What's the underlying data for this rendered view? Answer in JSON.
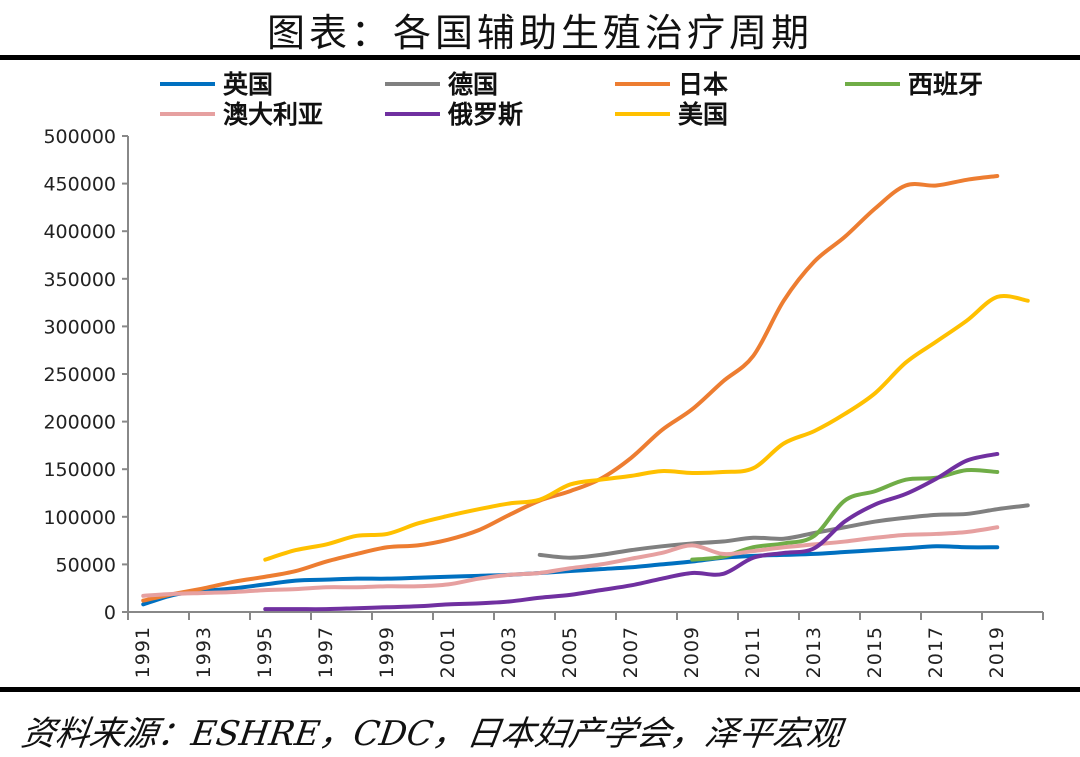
{
  "title": "图表：各国辅助生殖治疗周期",
  "source": "资料来源：ESHRE，CDC，日本妇产学会，泽平宏观",
  "chart_data": {
    "type": "line",
    "title": "图表：各国辅助生殖治疗周期",
    "xlabel": "",
    "ylabel": "",
    "ylim": [
      0,
      500000
    ],
    "yticks": [
      "0",
      "50000",
      "100000",
      "150000",
      "200000",
      "250000",
      "300000",
      "350000",
      "400000",
      "450000",
      "500000"
    ],
    "xticks": [
      "1991",
      "1993",
      "1995",
      "1997",
      "1999",
      "2001",
      "2003",
      "2005",
      "2007",
      "2009",
      "2011",
      "2013",
      "2015",
      "2017",
      "2019"
    ],
    "x_range": [
      1991,
      2020
    ],
    "grid": false,
    "legend": "top",
    "series": [
      {
        "name": "英国",
        "color": "#0070C0",
        "start": 1991,
        "values": [
          8000,
          18000,
          22000,
          25000,
          29000,
          33000,
          34000,
          35000,
          35000,
          36000,
          37000,
          38000,
          39000,
          41000,
          43000,
          45000,
          47000,
          50000,
          53000,
          57000,
          59000,
          60000,
          61000,
          63000,
          65000,
          67000,
          69000,
          68000,
          68000
        ]
      },
      {
        "name": "德国",
        "color": "#808080",
        "start": 2004,
        "values": [
          60000,
          57000,
          60000,
          65000,
          69000,
          72000,
          74000,
          78000,
          77000,
          83000,
          89000,
          95000,
          99000,
          102000,
          103000,
          108000,
          112000
        ]
      },
      {
        "name": "日本",
        "color": "#ED7D31",
        "start": 1991,
        "values": [
          12000,
          19000,
          25000,
          32000,
          37000,
          43000,
          53000,
          61000,
          68000,
          70000,
          76000,
          86000,
          102000,
          117000,
          127000,
          140000,
          162000,
          191000,
          213000,
          242000,
          269000,
          327000,
          368000,
          394000,
          424000,
          448000,
          448000,
          454000,
          458000
        ]
      },
      {
        "name": "西班牙",
        "color": "#70AD47",
        "start": 2009,
        "values": [
          55000,
          58000,
          68000,
          72000,
          80000,
          117000,
          127000,
          139000,
          141000,
          149000,
          147000
        ]
      },
      {
        "name": "澳大利亚",
        "color": "#E6A0A0",
        "start": 1991,
        "values": [
          17000,
          19000,
          20000,
          21000,
          23000,
          24000,
          26000,
          26000,
          27000,
          27000,
          29000,
          35000,
          39000,
          41000,
          46000,
          50000,
          56000,
          62000,
          70000,
          61000,
          64000,
          68000,
          71000,
          74000,
          78000,
          81000,
          82000,
          84000,
          89000
        ]
      },
      {
        "name": "俄罗斯",
        "color": "#7030A0",
        "start": 1995,
        "values": [
          3000,
          3000,
          3000,
          4000,
          5000,
          6000,
          8000,
          9000,
          11000,
          15000,
          18000,
          23000,
          28000,
          35000,
          41000,
          40000,
          57000,
          62000,
          67000,
          95000,
          113000,
          124000,
          140000,
          159000,
          166000
        ]
      },
      {
        "name": "美国",
        "color": "#FFC000",
        "start": 1995,
        "values": [
          55000,
          65000,
          71000,
          80000,
          82000,
          93000,
          101000,
          108000,
          114000,
          118000,
          134000,
          139000,
          143000,
          148000,
          146000,
          147000,
          151000,
          177000,
          190000,
          208000,
          230000,
          262000,
          284000,
          306000,
          331000,
          327000
        ]
      }
    ]
  }
}
